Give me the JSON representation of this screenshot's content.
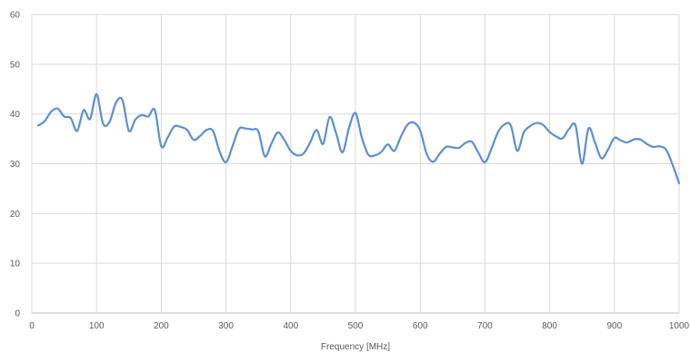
{
  "chart_data": {
    "type": "line",
    "title": "",
    "xlabel": "Frequency [MHz]",
    "ylabel": "",
    "xlim": [
      0,
      1000
    ],
    "ylim": [
      0,
      60
    ],
    "x_ticks": [
      "0",
      "100",
      "200",
      "300",
      "400",
      "500",
      "600",
      "700",
      "800",
      "900",
      "1000"
    ],
    "y_ticks": [
      "0",
      "10",
      "20",
      "30",
      "40",
      "50",
      "60"
    ],
    "grid": true,
    "legend": "none",
    "series": [
      {
        "color": "#5b8fd0",
        "x": [
          10,
          20,
          30,
          40,
          50,
          60,
          70,
          80,
          90,
          100,
          110,
          120,
          130,
          140,
          150,
          160,
          170,
          180,
          190,
          200,
          210,
          220,
          230,
          240,
          250,
          260,
          270,
          280,
          290,
          300,
          310,
          320,
          330,
          340,
          350,
          360,
          370,
          380,
          390,
          400,
          410,
          420,
          430,
          440,
          450,
          460,
          470,
          480,
          490,
          500,
          510,
          520,
          530,
          540,
          550,
          560,
          570,
          580,
          590,
          600,
          610,
          620,
          630,
          640,
          650,
          660,
          670,
          680,
          690,
          700,
          710,
          720,
          730,
          740,
          750,
          760,
          770,
          780,
          790,
          800,
          810,
          820,
          830,
          840,
          850,
          860,
          870,
          880,
          890,
          900,
          910,
          920,
          930,
          940,
          950,
          960,
          970,
          980,
          990,
          1000
        ],
        "y": [
          37.7,
          38.6,
          40.5,
          41.1,
          39.5,
          39.2,
          36.6,
          40.8,
          39.0,
          44.0,
          38.1,
          38.4,
          42.3,
          42.8,
          36.6,
          38.9,
          39.8,
          39.5,
          40.8,
          33.5,
          35.3,
          37.5,
          37.4,
          36.8,
          34.8,
          35.6,
          36.8,
          36.6,
          32.5,
          30.3,
          33.5,
          37.0,
          37.1,
          36.9,
          36.5,
          31.5,
          34.0,
          36.3,
          34.8,
          32.6,
          31.7,
          32.1,
          34.3,
          36.8,
          34.0,
          39.4,
          36.2,
          32.3,
          37.2,
          40.2,
          35.2,
          31.8,
          31.7,
          32.4,
          33.9,
          32.6,
          35.4,
          37.8,
          38.3,
          36.7,
          32.0,
          30.4,
          32.0,
          33.4,
          33.3,
          33.2,
          34.2,
          34.4,
          32.2,
          30.3,
          33.0,
          36.3,
          37.9,
          37.7,
          32.6,
          36.3,
          37.6,
          38.2,
          37.8,
          36.4,
          35.5,
          35.1,
          37.0,
          37.7,
          30.0,
          37.1,
          34.3,
          31.1,
          32.8,
          35.2,
          34.7,
          34.3,
          34.9,
          34.9,
          34.0,
          33.4,
          33.5,
          32.8,
          29.8,
          26.1
        ]
      }
    ]
  }
}
